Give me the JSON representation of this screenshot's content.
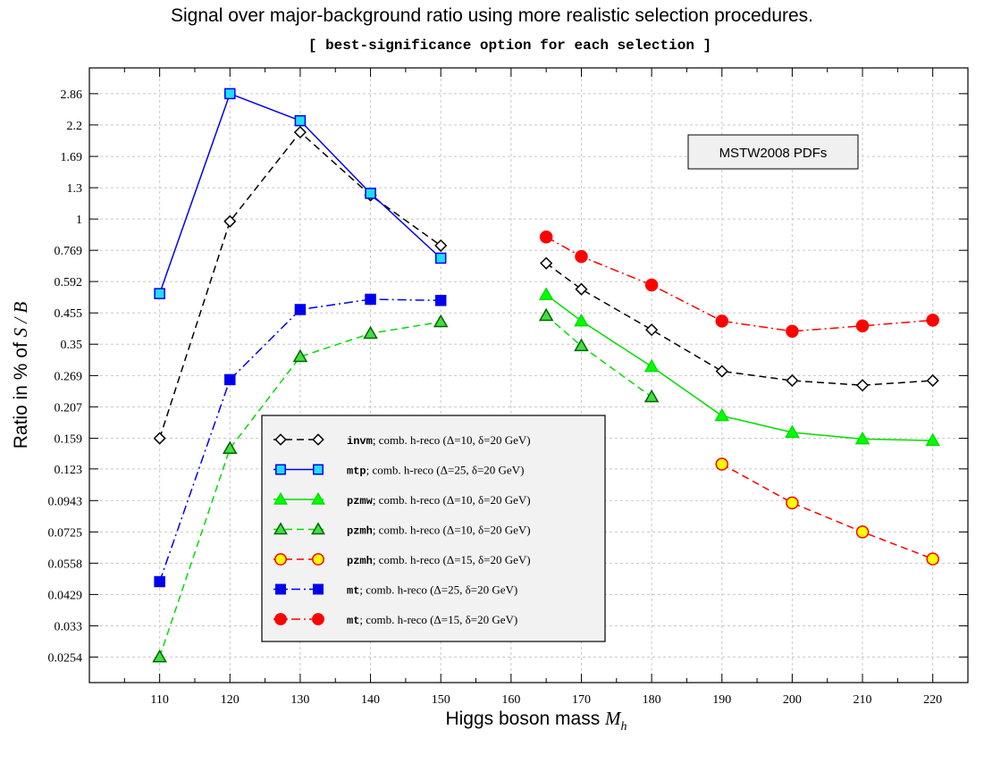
{
  "title": "Signal over major-background ratio using more realistic selection procedures.",
  "subtitle": "[ best-significance option for each selection ]",
  "annotation": "MSTW2008 PDFs",
  "chart_data": {
    "type": "line",
    "xlabel_text": "Higgs boson mass",
    "xlabel_symbol": "M",
    "xlabel_sub": "h",
    "ylabel_text": "Ratio in  %  of ",
    "ylabel_symbol": "S / B",
    "xlim": [
      100,
      225
    ],
    "x_ticks": [
      110,
      120,
      130,
      140,
      150,
      160,
      170,
      180,
      190,
      200,
      210,
      220
    ],
    "y_scale": "log",
    "ylim": [
      0.0205,
      3.55
    ],
    "y_ticks": [
      {
        "value": 2.86,
        "label": "2.86"
      },
      {
        "value": 2.2,
        "label": "2.2"
      },
      {
        "value": 1.69,
        "label": "1.69"
      },
      {
        "value": 1.3,
        "label": "1.3"
      },
      {
        "value": 1.0,
        "label": "1"
      },
      {
        "value": 0.769,
        "label": "0.769"
      },
      {
        "value": 0.592,
        "label": "0.592"
      },
      {
        "value": 0.455,
        "label": "0.455"
      },
      {
        "value": 0.35,
        "label": "0.35"
      },
      {
        "value": 0.269,
        "label": "0.269"
      },
      {
        "value": 0.207,
        "label": "0.207"
      },
      {
        "value": 0.159,
        "label": "0.159"
      },
      {
        "value": 0.123,
        "label": "0.123"
      },
      {
        "value": 0.0943,
        "label": "0.0943"
      },
      {
        "value": 0.0725,
        "label": "0.0725"
      },
      {
        "value": 0.0558,
        "label": "0.0558"
      },
      {
        "value": 0.0429,
        "label": "0.0429"
      },
      {
        "value": 0.033,
        "label": "0.033"
      },
      {
        "value": 0.0254,
        "label": "0.0254"
      }
    ],
    "grid": true,
    "legend_position": "bottom-center",
    "series": [
      {
        "name": "invm",
        "desc": "comb. h-reco (Δ=10, δ=20 GeV)",
        "color": "#000000",
        "fill": "#ffffff",
        "marker": "diamond",
        "dash": "dashed",
        "points": [
          [
            [
              110,
              0.159
            ],
            [
              120,
              0.98
            ],
            [
              130,
              2.07
            ],
            [
              140,
              1.22
            ],
            [
              150,
              0.8
            ]
          ],
          [
            [
              165,
              0.69
            ],
            [
              170,
              0.555
            ],
            [
              180,
              0.395
            ],
            [
              190,
              0.279
            ],
            [
              200,
              0.258
            ],
            [
              210,
              0.248
            ],
            [
              220,
              0.258
            ]
          ]
        ]
      },
      {
        "name": "mtp",
        "desc": "comb. h-reco (Δ=25, δ=20 GeV)",
        "color": "#0000ee",
        "fill": "#22ddff",
        "marker": "square",
        "dash": "solid",
        "points": [
          [
            [
              110,
              0.535
            ],
            [
              120,
              2.86
            ],
            [
              130,
              2.28
            ],
            [
              140,
              1.24
            ],
            [
              150,
              0.72
            ]
          ]
        ]
      },
      {
        "name": "pzmw",
        "desc": "comb. h-reco (Δ=10, δ=20 GeV)",
        "color": "#00dd00",
        "fill": "#00ff00",
        "marker": "triangle",
        "dash": "solid",
        "points": [
          [
            [
              165,
              0.53
            ],
            [
              170,
              0.425
            ],
            [
              180,
              0.29
            ],
            [
              190,
              0.192
            ],
            [
              200,
              0.167
            ],
            [
              210,
              0.158
            ],
            [
              220,
              0.156
            ]
          ]
        ]
      },
      {
        "name": "pzmh",
        "desc": "comb. h-reco (Δ=10, δ=20 GeV)",
        "color": "#00dd00",
        "fill": "#44dd44",
        "marker": "triangle",
        "dash": "dashed",
        "points": [
          [
            [
              110,
              0.0254
            ],
            [
              120,
              0.146
            ],
            [
              130,
              0.315
            ],
            [
              140,
              0.383
            ],
            [
              150,
              0.422
            ]
          ],
          [
            [
              165,
              0.445
            ],
            [
              170,
              0.345
            ],
            [
              180,
              0.225
            ]
          ]
        ]
      },
      {
        "name": "pzmh",
        "desc": "comb. h-reco (Δ=15, δ=20 GeV)",
        "color": "#ff0000",
        "fill": "#ffff00",
        "marker": "circle",
        "dash": "dashed",
        "points": [
          [
            [
              190,
              0.128
            ],
            [
              200,
              0.0925
            ],
            [
              210,
              0.0725
            ],
            [
              220,
              0.0578
            ]
          ]
        ]
      },
      {
        "name": "mt",
        "desc": "comb. h-reco (Δ=25, δ=20 GeV)",
        "color": "#0000ee",
        "fill": "#0000ee",
        "marker": "square",
        "dash": "dashdot",
        "points": [
          [
            [
              110,
              0.0478
            ],
            [
              120,
              0.26
            ],
            [
              130,
              0.468
            ],
            [
              140,
              0.51
            ],
            [
              150,
              0.505
            ]
          ]
        ]
      },
      {
        "name": "mt",
        "desc": "comb. h-reco (Δ=15, δ=20 GeV)",
        "color": "#ff0000",
        "fill": "#ff0000",
        "marker": "circle",
        "dash": "dashdot",
        "points": [
          [
            [
              165,
              0.86
            ],
            [
              170,
              0.73
            ],
            [
              180,
              0.575
            ],
            [
              190,
              0.425
            ],
            [
              200,
              0.39
            ],
            [
              210,
              0.408
            ],
            [
              220,
              0.428
            ]
          ]
        ]
      }
    ]
  }
}
